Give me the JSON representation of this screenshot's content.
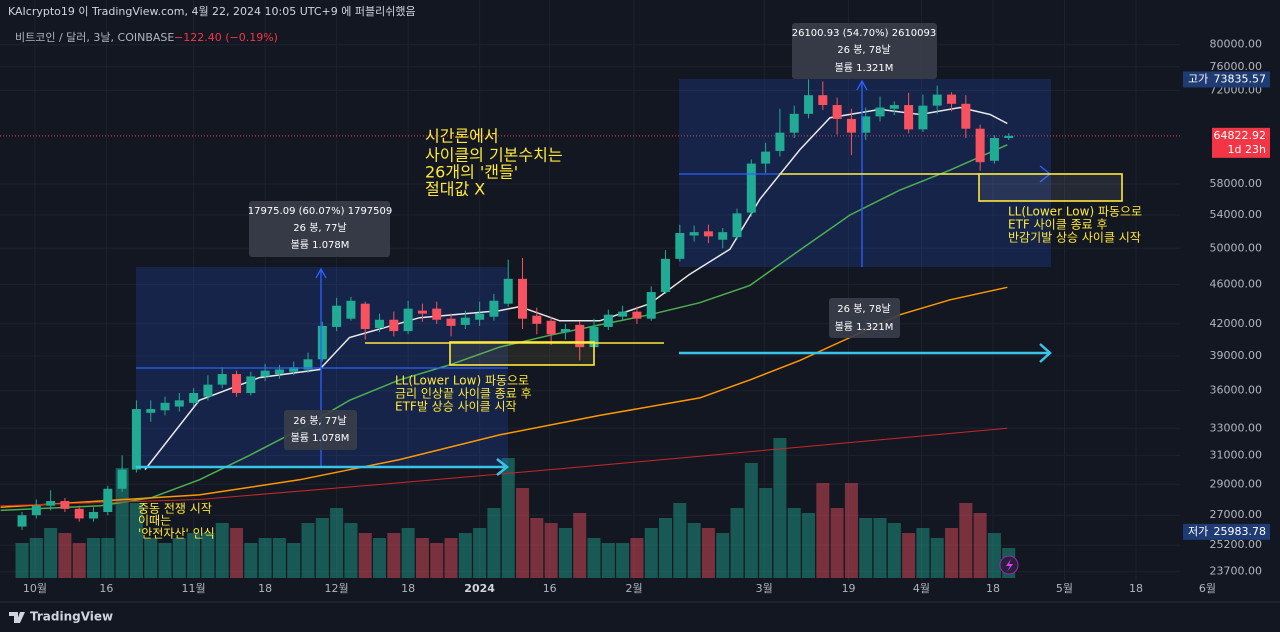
{
  "header": {
    "publisher": "KAIcrypto19 이 TradingView.com, 4월 22, 2024 10:05 UTC+9 에 퍼블리쉬했음",
    "footer": "TradingView"
  },
  "chart_data": {
    "type": "candlestick",
    "symbol": "비트코인 / 달러, 3날, COINBASE",
    "change": "−122.40 (−0.19%)",
    "log_scale": true,
    "grid": true,
    "up_color": "#22ab94",
    "down_color": "#f7525f",
    "ylim": [
      23250,
      88700
    ],
    "yticks": [
      {
        "value": 80000,
        "label": "80000.00"
      },
      {
        "value": 76000,
        "label": "76000.00"
      },
      {
        "value": 72000,
        "label": "72000.00"
      },
      {
        "value": 58000,
        "label": "58000.00"
      },
      {
        "value": 54000,
        "label": "54000.00"
      },
      {
        "value": 50000,
        "label": "50000.00"
      },
      {
        "value": 46000,
        "label": "46000.00"
      },
      {
        "value": 42000,
        "label": "42000.00"
      },
      {
        "value": 39000,
        "label": "39000.00"
      },
      {
        "value": 36000,
        "label": "36000.00"
      },
      {
        "value": 33000,
        "label": "33000.00"
      },
      {
        "value": 31000,
        "label": "31000.00"
      },
      {
        "value": 29000,
        "label": "29000.00"
      },
      {
        "value": 27000,
        "label": "27000.00"
      },
      {
        "value": 25200,
        "label": "25200.00"
      },
      {
        "value": 23700,
        "label": "23700.00"
      }
    ],
    "xlim": [
      -1.54,
      87.97
    ],
    "xticks": [
      {
        "value": 0.9,
        "label": "10월"
      },
      {
        "value": 5.9,
        "label": "16"
      },
      {
        "value": 12.0,
        "label": "11월"
      },
      {
        "value": 17.0,
        "label": "18"
      },
      {
        "value": 22.0,
        "label": "12월"
      },
      {
        "value": 27.0,
        "label": "18"
      },
      {
        "value": 32.0,
        "label": "2024"
      },
      {
        "value": 36.9,
        "label": "16"
      },
      {
        "value": 42.8,
        "label": "2월"
      },
      {
        "value": 51.9,
        "label": "3월"
      },
      {
        "value": 57.8,
        "label": "19"
      },
      {
        "value": 62.9,
        "label": "4월"
      },
      {
        "value": 67.9,
        "label": "18"
      },
      {
        "value": 72.9,
        "label": "5월"
      },
      {
        "value": 77.9,
        "label": "18"
      },
      {
        "value": 82.9,
        "label": "6월"
      }
    ],
    "candles": {
      "open": [
        26300,
        27000,
        27600,
        27900,
        27400,
        26800,
        27200,
        28700,
        30000,
        34200,
        34400,
        34700,
        35000,
        35500,
        36500,
        37400,
        35800,
        37200,
        37400,
        37600,
        37800,
        38700,
        41700,
        42500,
        44000,
        41600,
        42400,
        41300,
        43300,
        43500,
        42500,
        41900,
        42400,
        42700,
        44000,
        46600,
        42800,
        42300,
        41200,
        41900,
        39800,
        41700,
        42700,
        43200,
        42500,
        45200,
        48800,
        51500,
        52000,
        51000,
        51300,
        54300,
        60800,
        62600,
        65300,
        68200,
        71200,
        69600,
        67400,
        65300,
        67800,
        69000,
        69600,
        65800,
        69500,
        71300,
        69800,
        65900,
        61200,
        64500
      ],
      "high": [
        27200,
        28000,
        28600,
        28100,
        27600,
        27500,
        28900,
        31000,
        35200,
        35200,
        35500,
        35800,
        36200,
        37300,
        38000,
        37700,
        37600,
        38300,
        38200,
        38500,
        39300,
        42200,
        44600,
        44700,
        44200,
        43000,
        43200,
        44300,
        44000,
        44200,
        43000,
        43300,
        44200,
        45000,
        48700,
        48900,
        43600,
        42700,
        42000,
        42200,
        42500,
        43400,
        43800,
        43700,
        45800,
        49800,
        52800,
        52700,
        52800,
        52400,
        54800,
        61400,
        63800,
        69000,
        69500,
        73835,
        73500,
        70800,
        69000,
        69200,
        71000,
        70200,
        71600,
        71300,
        72800,
        71700,
        71200,
        66500,
        64900,
        65200
      ],
      "low": [
        26100,
        26800,
        27300,
        27200,
        26600,
        26600,
        27000,
        28500,
        29800,
        33500,
        34000,
        34300,
        34700,
        35200,
        36200,
        35500,
        35600,
        36800,
        37000,
        37300,
        37500,
        38500,
        41300,
        42300,
        40500,
        41200,
        40800,
        41000,
        42200,
        42000,
        40800,
        41500,
        41800,
        42300,
        43700,
        41500,
        41000,
        40000,
        40500,
        38600,
        39500,
        41400,
        42300,
        42000,
        42300,
        45000,
        48500,
        50800,
        50600,
        50000,
        51000,
        53800,
        59500,
        61800,
        64500,
        67500,
        68800,
        65000,
        62000,
        64200,
        67000,
        68000,
        65200,
        65400,
        68200,
        68600,
        64500,
        59800,
        60800,
        64200
      ],
      "close": [
        27000,
        27600,
        27900,
        27400,
        26800,
        27200,
        28700,
        30000,
        34500,
        34500,
        35000,
        35200,
        35800,
        36500,
        37400,
        35800,
        37200,
        37700,
        37800,
        38000,
        38700,
        41800,
        43800,
        44300,
        41500,
        42400,
        41300,
        43500,
        43000,
        42400,
        41800,
        42600,
        43000,
        44300,
        46600,
        42500,
        42000,
        41000,
        41500,
        39800,
        41700,
        42900,
        43200,
        42500,
        45200,
        48800,
        51800,
        51900,
        51400,
        51900,
        54200,
        60800,
        62500,
        65300,
        68200,
        71200,
        69600,
        67400,
        65300,
        67800,
        69200,
        69600,
        65800,
        69500,
        71300,
        69800,
        65900,
        61000,
        64500,
        64823
      ]
    },
    "volume": [
      35,
      40,
      50,
      45,
      35,
      40,
      40,
      110,
      75,
      40,
      35,
      40,
      45,
      45,
      55,
      50,
      35,
      40,
      40,
      35,
      55,
      60,
      70,
      55,
      45,
      40,
      45,
      50,
      40,
      35,
      40,
      45,
      50,
      70,
      120,
      90,
      60,
      55,
      50,
      65,
      40,
      35,
      35,
      40,
      50,
      60,
      75,
      55,
      50,
      45,
      70,
      115,
      90,
      140,
      70,
      65,
      95,
      70,
      95,
      60,
      60,
      55,
      45,
      50,
      40,
      50,
      75,
      65,
      45,
      30
    ],
    "volume_lim": [
      0,
      150
    ],
    "lines": [
      {
        "color": "#e8e8e8",
        "x": [
          8.6,
          12.4,
          16.6,
          20.8,
          22.9,
          27.8,
          33.4,
          34.8,
          37.6,
          40.4,
          43.9,
          46.7,
          49.5,
          51.6,
          54.4,
          56.5,
          60.0,
          62.8,
          65.6,
          67.7,
          68.9
        ],
        "values": [
          30000,
          35200,
          37100,
          37800,
          40700,
          42600,
          43300,
          43700,
          42300,
          42300,
          44000,
          47100,
          49900,
          56000,
          62800,
          67600,
          68900,
          68100,
          69200,
          68100,
          66700
        ]
      },
      {
        "color": "#4caf50",
        "x": [
          -1.5,
          5.5,
          9.0,
          12.4,
          15.9,
          19.4,
          22.9,
          26.4,
          29.9,
          33.4,
          36.9,
          40.4,
          43.9,
          47.4,
          50.9,
          54.4,
          57.9,
          61.4,
          64.9,
          68.9
        ],
        "values": [
          27300,
          27600,
          28100,
          29300,
          31000,
          32900,
          35200,
          36900,
          38200,
          39800,
          40900,
          41900,
          42900,
          44100,
          45900,
          49800,
          54000,
          57200,
          59900,
          63500
        ]
      },
      {
        "color": "#ff9800",
        "x": [
          -1.5,
          5.5,
          12.4,
          19.4,
          26.4,
          33.4,
          40.4,
          47.4,
          50.9,
          54.4,
          57.9,
          61.4,
          64.9,
          68.9
        ],
        "values": [
          27500,
          27900,
          28300,
          29300,
          30700,
          32500,
          34000,
          35400,
          36900,
          38600,
          40700,
          42900,
          44400,
          45700
        ]
      },
      {
        "color": "#c62828",
        "x": [
          -1.5,
          12.4,
          26.4,
          40.4,
          54.4,
          68.9
        ],
        "values": [
          27600,
          28000,
          29100,
          30300,
          31600,
          33000
        ]
      }
    ],
    "price_labels": {
      "high": {
        "label": "고가",
        "value": 73835.57
      },
      "last": {
        "value": 64822.92,
        "countdown": "1d 23h"
      },
      "low": {
        "label": "저가",
        "value": 25983.78
      }
    },
    "annotations": {
      "range1": {
        "line1": "17975.09 (60.07%) 1797509",
        "line2": "26 봉, 77날",
        "line3": "볼륨 1.078M"
      },
      "range1_small": {
        "line1": "26 봉, 77날",
        "line2": "볼륨 1.078M"
      },
      "range2": {
        "line1": "26100.93 (54.70%) 2610093",
        "line2": "26 봉, 78날",
        "line3": "볼륨 1.321M"
      },
      "range2_small": {
        "line1": "26 봉, 78날",
        "line2": "볼륨 1.321M"
      },
      "theory": [
        "시간론에서",
        "사이클의 기본수치는",
        "26개의 '캔들'",
        "절대값 X"
      ],
      "note1": [
        "LL(Lower Low) 파동으로",
        "금리 인상끝 사이클 종료 후",
        "ETF발 상승 사이클 시작"
      ],
      "note2": [
        "LL(Lower Low) 파동으로",
        "ETF 사이클 종료 후",
        "반감기발 상승 사이클 시작"
      ],
      "note3": [
        "중동 전쟁 시작",
        "이때는",
        "'안전자산' 인식"
      ]
    }
  }
}
